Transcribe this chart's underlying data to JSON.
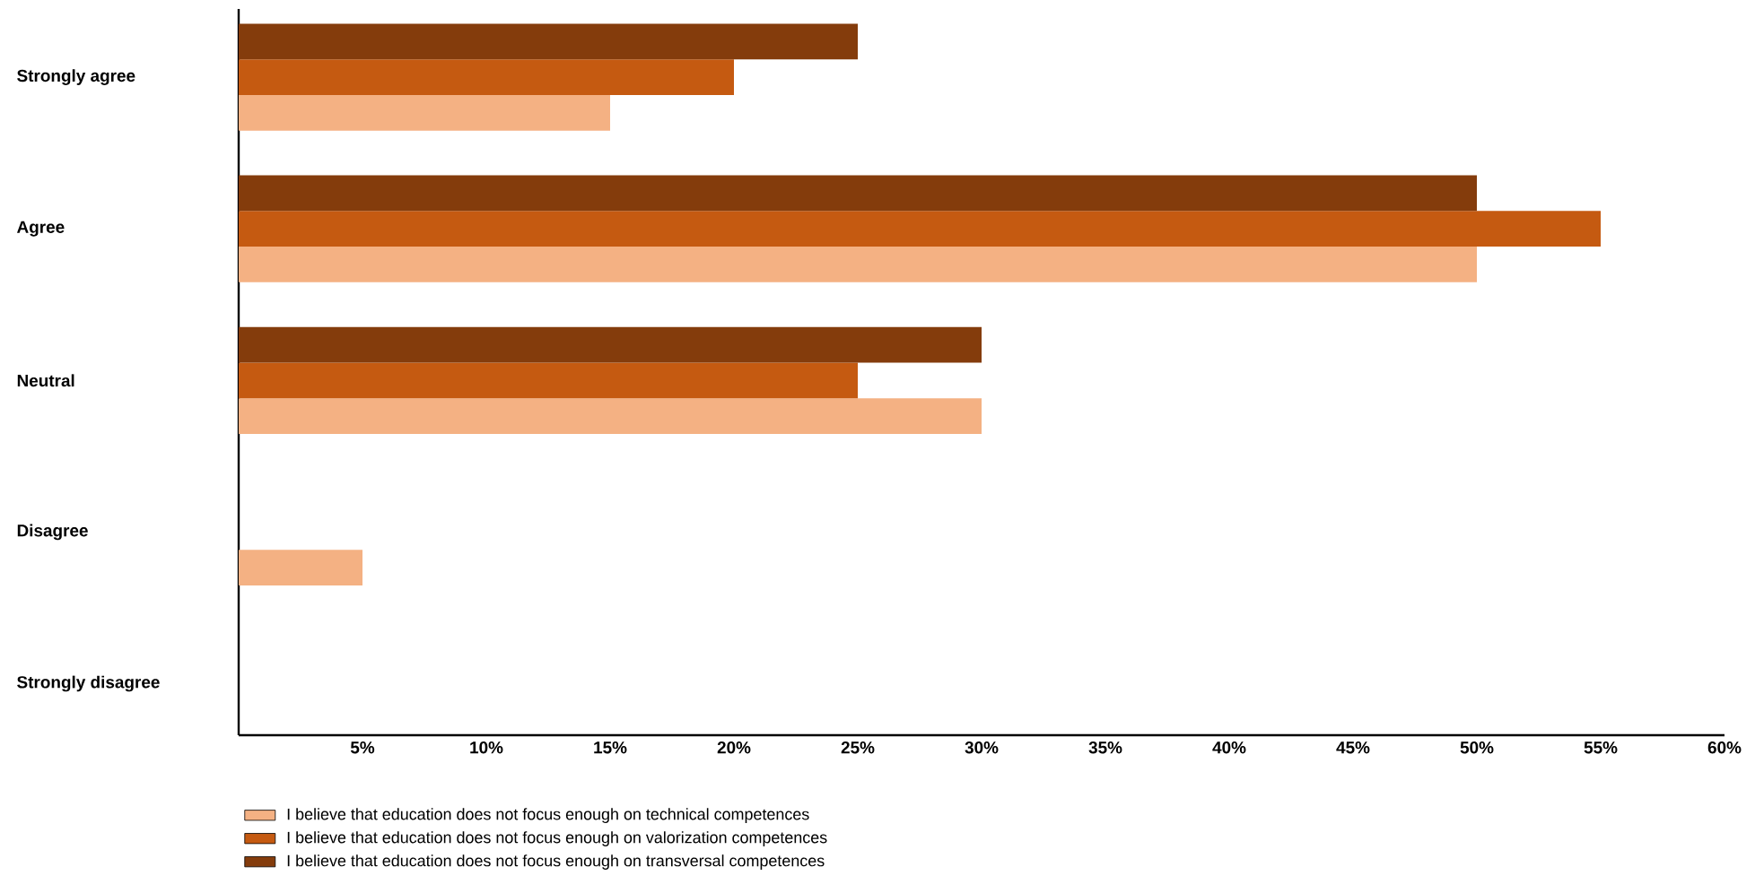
{
  "chart_data": {
    "type": "bar",
    "orientation": "horizontal",
    "categories": [
      "Strongly agree",
      "Agree",
      "Neutral",
      "Disagree",
      "Strongly disagree"
    ],
    "series": [
      {
        "name": "I believe that education does not focus enough on technical competences",
        "color": "#f4b183",
        "values": [
          15,
          50,
          30,
          5,
          0
        ]
      },
      {
        "name": "I believe that education does not focus enough on valorization competences",
        "color": "#c55a11",
        "values": [
          20,
          55,
          25,
          0,
          0
        ]
      },
      {
        "name": "I believe that education does not focus enough on transversal competences",
        "color": "#843c0c",
        "values": [
          25,
          50,
          30,
          0,
          0
        ]
      }
    ],
    "xlim": [
      0,
      60
    ],
    "xticks": [
      {
        "value": 5,
        "label": "5%"
      },
      {
        "value": 10,
        "label": "10%"
      },
      {
        "value": 15,
        "label": "15%"
      },
      {
        "value": 20,
        "label": "20%"
      },
      {
        "value": 25,
        "label": "25%"
      },
      {
        "value": 30,
        "label": "30%"
      },
      {
        "value": 35,
        "label": "35%"
      },
      {
        "value": 40,
        "label": "40%"
      },
      {
        "value": 45,
        "label": "45%"
      },
      {
        "value": 50,
        "label": "50%"
      },
      {
        "value": 55,
        "label": "55%"
      },
      {
        "value": 60,
        "label": "60%"
      }
    ],
    "legend": "bottom"
  }
}
